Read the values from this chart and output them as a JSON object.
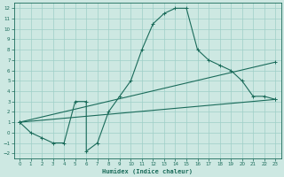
{
  "xlabel": "Humidex (Indice chaleur)",
  "xlim": [
    -0.5,
    23.5
  ],
  "ylim": [
    -2.5,
    12.5
  ],
  "xticks": [
    0,
    1,
    2,
    3,
    4,
    5,
    6,
    7,
    8,
    9,
    10,
    11,
    12,
    13,
    14,
    15,
    16,
    17,
    18,
    19,
    20,
    21,
    22,
    23
  ],
  "yticks": [
    -2,
    -1,
    0,
    1,
    2,
    3,
    4,
    5,
    6,
    7,
    8,
    9,
    10,
    11,
    12
  ],
  "bg_color": "#cde8e2",
  "grid_color": "#9ecfc7",
  "line_color": "#1a6b5a",
  "line1_x": [
    0,
    1,
    2,
    3,
    4,
    5,
    6,
    6,
    7,
    8,
    9,
    10,
    11,
    12,
    13,
    14,
    15,
    16,
    17,
    18,
    19,
    20,
    21,
    22,
    23
  ],
  "line1_y": [
    1,
    0,
    -0.5,
    -1,
    -1,
    3,
    3,
    -1.8,
    -1,
    2,
    3.5,
    5,
    8,
    10.5,
    11.5,
    12,
    12,
    8,
    7,
    6.5,
    6,
    5,
    3.5,
    3.5,
    3.2
  ],
  "line2_x": [
    0,
    23
  ],
  "line2_y": [
    1.0,
    3.2
  ],
  "line3_x": [
    0,
    23
  ],
  "line3_y": [
    1.0,
    6.8
  ]
}
